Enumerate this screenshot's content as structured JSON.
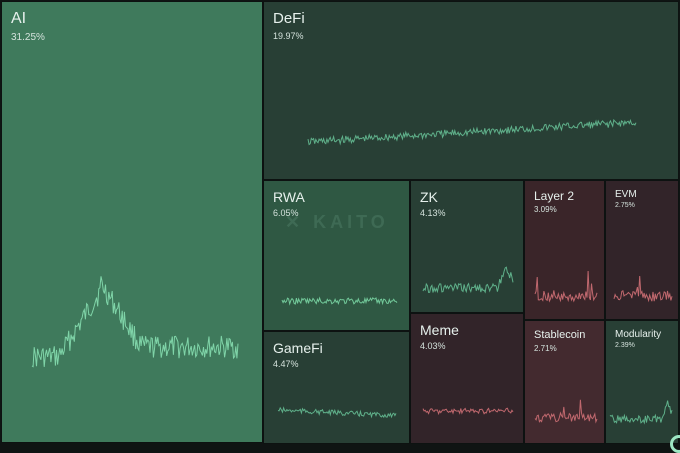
{
  "tiles": {
    "ai": {
      "name": "AI",
      "pct": "31.25%",
      "color": "#3f7a5c",
      "line": "#7fd4a8"
    },
    "defi": {
      "name": "DeFi",
      "pct": "19.97%",
      "color": "#283f35",
      "line": "#5fb08a"
    },
    "rwa": {
      "name": "RWA",
      "pct": "6.05%",
      "color": "#2f5843",
      "line": "#72c99a"
    },
    "zk": {
      "name": "ZK",
      "pct": "4.13%",
      "color": "#283f35",
      "line": "#5fb08a"
    },
    "layer2": {
      "name": "Layer 2",
      "pct": "3.09%",
      "color": "#3a2529",
      "line": "#c0686e"
    },
    "evm": {
      "name": "EVM",
      "pct": "2.75%",
      "color": "#322429",
      "line": "#c0686e"
    },
    "gamefi": {
      "name": "GameFi",
      "pct": "4.47%",
      "color": "#283f35",
      "line": "#5fb08a"
    },
    "meme": {
      "name": "Meme",
      "pct": "4.03%",
      "color": "#322429",
      "line": "#c0686e"
    },
    "stablecoin": {
      "name": "Stablecoin",
      "pct": "2.71%",
      "color": "#432a2f",
      "line": "#c0686e"
    },
    "modularity": {
      "name": "Modularity",
      "pct": "2.39%",
      "color": "#283f35",
      "line": "#5fb08a"
    }
  },
  "watermark": "KAITO",
  "icons": {
    "logo": "kaito-logo-icon",
    "badge": "corner-badge-icon"
  }
}
